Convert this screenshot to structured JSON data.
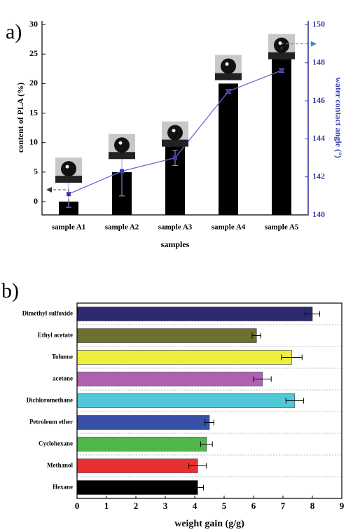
{
  "chart_data": [
    {
      "type": "bar",
      "panel_label": "a)",
      "xlabel": "samples",
      "ylabel": "content of PLA (%)",
      "y2label": "water contact angle (°)",
      "categories": [
        "sample  A1",
        "sample  A2",
        "sample  A3",
        "sample  A4",
        "sample  A5"
      ],
      "series": [
        {
          "type": "bar",
          "color": "#000000",
          "values": [
            0,
            5,
            10,
            20,
            25
          ]
        },
        {
          "type": "line",
          "axis": "y2",
          "color": "#6a6ad8",
          "values": [
            141.1,
            142.3,
            143.0,
            146.5,
            147.6
          ],
          "errors": [
            0.7,
            1.3,
            0.4,
            0.1,
            0.1
          ]
        }
      ],
      "ylim": [
        -2.25,
        30.6
      ],
      "yticks": [
        0,
        5,
        10,
        15,
        20,
        25,
        30
      ],
      "y2lim": [
        140,
        150.2
      ],
      "y2ticks": [
        140,
        142,
        144,
        146,
        148,
        150
      ]
    },
    {
      "type": "hbar",
      "panel_label": "b)",
      "xlabel": "weight gain (g/g)",
      "categories": [
        "Dimethyl sulfoxide",
        "Ethyl acetate",
        "Toluene",
        "acetone",
        "Dichloromethane",
        "Petroleum ether",
        "Cyclohexane",
        "Methanol",
        "Hexane"
      ],
      "values": [
        8.0,
        6.1,
        7.3,
        6.3,
        7.4,
        4.5,
        4.4,
        4.1,
        4.1
      ],
      "errors": [
        0.25,
        0.15,
        0.35,
        0.3,
        0.3,
        0.15,
        0.2,
        0.3,
        0.2
      ],
      "colors": [
        "#2e2a6e",
        "#6e7030",
        "#f0ee3c",
        "#b060b0",
        "#50c8d8",
        "#3850a8",
        "#50b848",
        "#e83030",
        "#000000"
      ],
      "xlim": [
        0,
        9
      ],
      "xticks": [
        0,
        1,
        2,
        3,
        4,
        5,
        6,
        7,
        8,
        9
      ],
      "grid": true
    }
  ]
}
